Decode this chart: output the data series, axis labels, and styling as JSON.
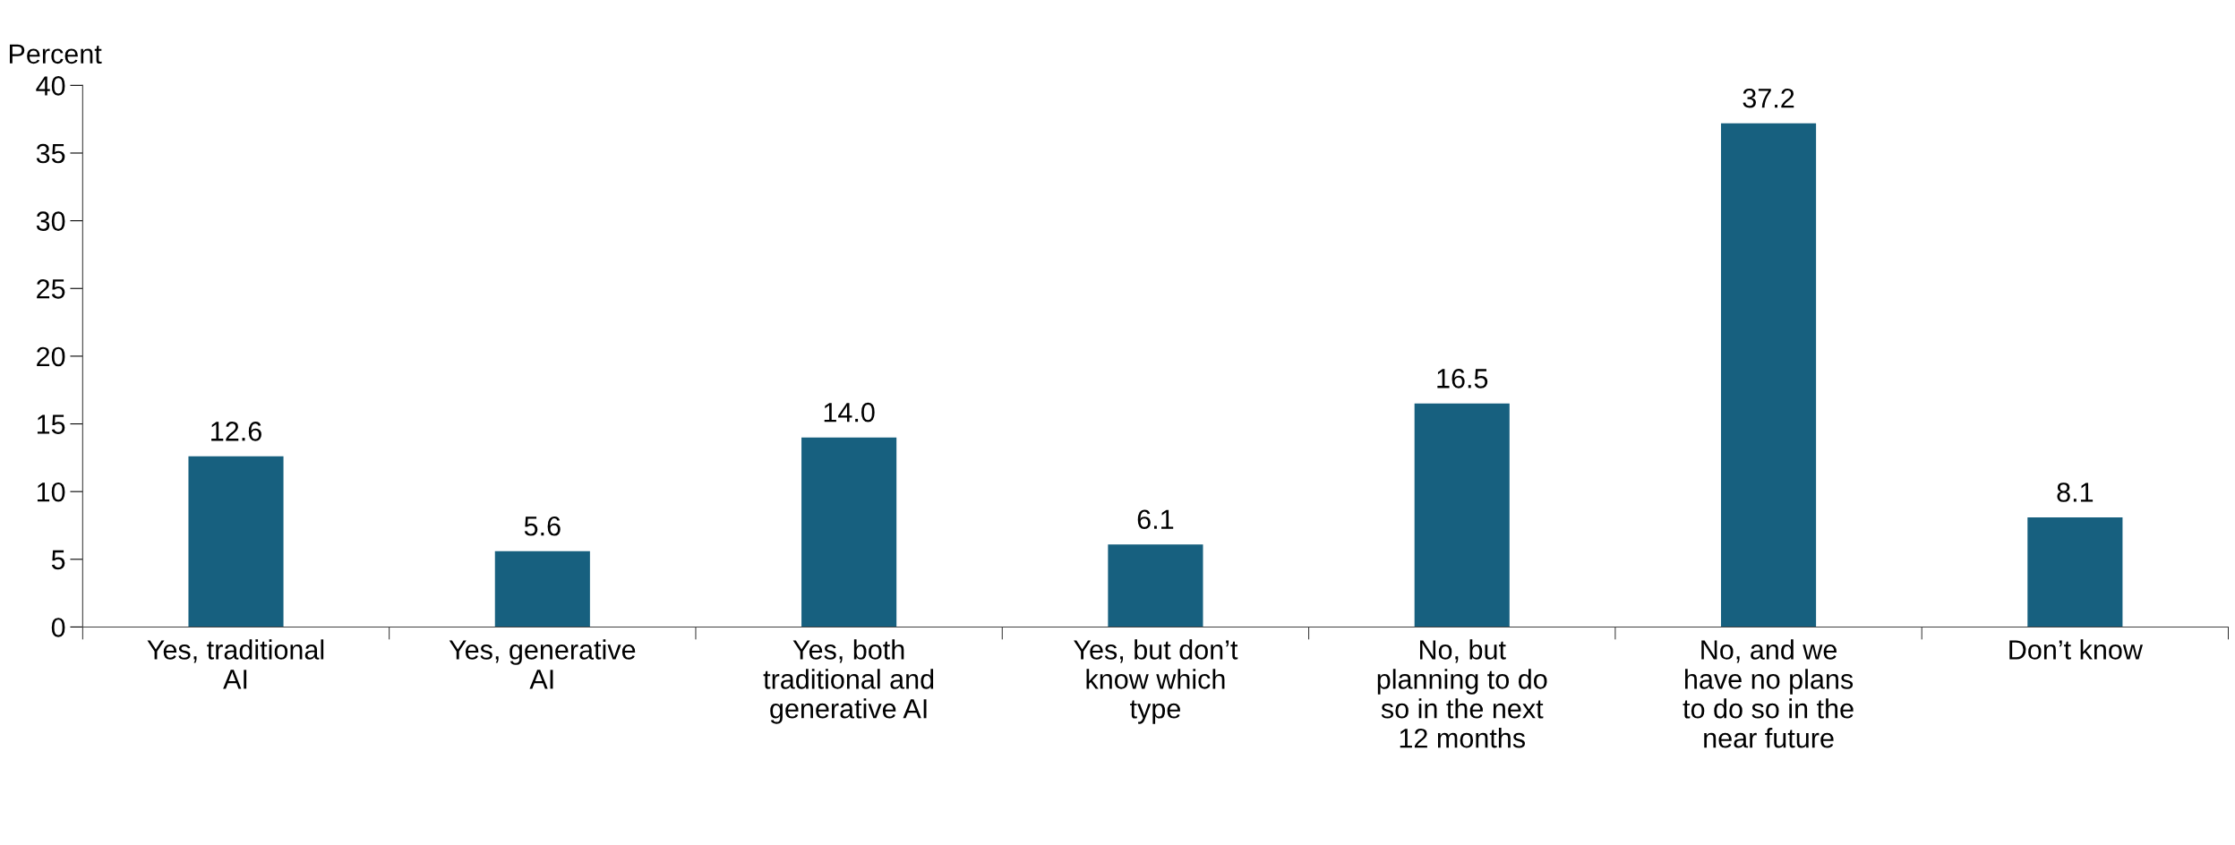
{
  "chart_data": {
    "type": "bar",
    "ylabel": "Percent",
    "categories": [
      "Yes, traditional\nAI",
      "Yes, generative\nAI",
      "Yes, both\ntraditional and\ngenerative AI",
      "Yes, but don’t\nknow which\ntype",
      "No, but\nplanning to do\nso in the next\n12 months",
      "No, and we\nhave no plans\nto do so in the\nnear future",
      "Don’t know"
    ],
    "values": [
      12.6,
      5.6,
      14.0,
      6.1,
      16.5,
      37.2,
      8.1
    ],
    "value_labels": [
      "12.6",
      "5.6",
      "14.0",
      "6.1",
      "16.5",
      "37.2",
      "8.1"
    ],
    "color": "#17607f",
    "ylim": [
      0,
      40
    ],
    "yticks": [
      0,
      5,
      10,
      15,
      20,
      25,
      30,
      35,
      40
    ],
    "grid": false,
    "legend": false
  }
}
